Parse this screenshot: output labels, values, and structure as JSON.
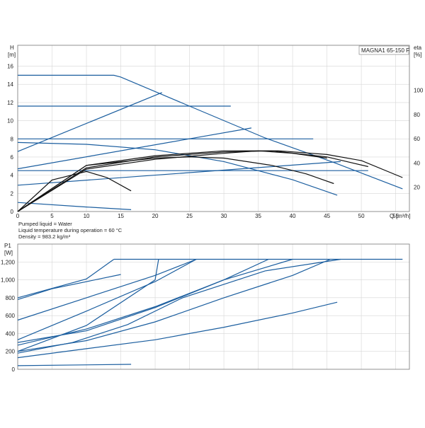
{
  "colors": {
    "curve": "#1b5e9f",
    "efficiency": "#111111",
    "grid": "#d6d6d6",
    "frame": "#777777"
  },
  "notes": [
    "Pumped liquid = Water",
    "Liquid temperature during operation = 60 °C",
    "Density = 983.2 kg/m³"
  ],
  "chart_data": [
    {
      "type": "line",
      "title": "MAGNA1 65-150 F",
      "ylabel": "H",
      "yunit": "[m]",
      "y2label": "eta",
      "y2unit": "[%]",
      "xlabel": "Q",
      "xunit": "[m³/h]",
      "xlim": [
        0,
        57
      ],
      "ylim": [
        0,
        18.3
      ],
      "y2lim": [
        0,
        137
      ],
      "grid": true,
      "x_ticks": [
        "0",
        "5",
        "10",
        "15",
        "20",
        "25",
        "30",
        "35",
        "40",
        "45",
        "50",
        "55"
      ],
      "y_ticks": [
        "0",
        "2",
        "4",
        "6",
        "8",
        "10",
        "12",
        "14",
        "16"
      ],
      "y2_ticks": [
        "20",
        "40",
        "60",
        "80",
        "100"
      ],
      "head_curves": [
        [
          [
            0,
            15
          ],
          [
            14,
            15
          ],
          [
            15,
            14.8
          ],
          [
            25,
            11.6
          ],
          [
            36,
            8.1
          ],
          [
            46,
            5.4
          ],
          [
            56,
            2.5
          ]
        ],
        [
          [
            0,
            6.6
          ],
          [
            21,
            13.1
          ]
        ],
        [
          [
            0,
            4.7
          ],
          [
            34,
            9.2
          ]
        ],
        [
          [
            0,
            2.9
          ],
          [
            47,
            5.5
          ]
        ],
        [
          [
            0,
            1.0
          ],
          [
            10,
            0.5
          ],
          [
            16.5,
            0.2
          ]
        ],
        [
          [
            0,
            11.6
          ],
          [
            31,
            11.6
          ]
        ],
        [
          [
            0,
            8.0
          ],
          [
            43,
            8.0
          ]
        ],
        [
          [
            0,
            4.5
          ],
          [
            51,
            4.5
          ]
        ],
        [
          [
            0,
            7.6
          ],
          [
            10,
            7.4
          ],
          [
            20,
            6.8
          ],
          [
            30,
            5.5
          ],
          [
            40,
            3.5
          ],
          [
            46.5,
            1.8
          ]
        ]
      ],
      "efficiency_curves": [
        [
          [
            0,
            0
          ],
          [
            5,
            26
          ],
          [
            10,
            33
          ],
          [
            13,
            28
          ],
          [
            16.5,
            17
          ]
        ],
        [
          [
            0,
            0
          ],
          [
            10,
            38
          ],
          [
            20,
            44
          ],
          [
            25,
            45
          ],
          [
            30,
            44
          ],
          [
            37,
            38
          ],
          [
            42,
            31
          ],
          [
            46,
            23
          ]
        ],
        [
          [
            0,
            0
          ],
          [
            10,
            35
          ],
          [
            20,
            43
          ],
          [
            30,
            48
          ],
          [
            35,
            50
          ],
          [
            40,
            48
          ],
          [
            45,
            44
          ]
        ],
        [
          [
            0,
            0
          ],
          [
            10,
            36
          ],
          [
            20,
            45
          ],
          [
            30,
            49
          ],
          [
            37,
            50
          ],
          [
            45,
            45
          ],
          [
            51,
            37
          ]
        ],
        [
          [
            0,
            0
          ],
          [
            10,
            38
          ],
          [
            20,
            46
          ],
          [
            30,
            50
          ],
          [
            38,
            50
          ],
          [
            45,
            47
          ],
          [
            50,
            42
          ],
          [
            56,
            28
          ]
        ]
      ]
    },
    {
      "type": "line",
      "ylabel": "P1",
      "yunit": "[W]",
      "xlim": [
        0,
        57
      ],
      "ylim": [
        0,
        1400
      ],
      "grid": true,
      "y_ticks": [
        "0",
        "200",
        "400",
        "600",
        "800",
        "1,000",
        "1,200"
      ],
      "power_curves": [
        [
          [
            0,
            40
          ],
          [
            16.5,
            55
          ]
        ],
        [
          [
            0,
            130
          ],
          [
            10,
            230
          ],
          [
            20,
            330
          ],
          [
            30,
            470
          ],
          [
            40,
            630
          ],
          [
            46.5,
            750
          ]
        ],
        [
          [
            0,
            200
          ],
          [
            10,
            320
          ],
          [
            20,
            530
          ],
          [
            30,
            800
          ],
          [
            40,
            1050
          ],
          [
            45.5,
            1230
          ]
        ],
        [
          [
            0,
            270
          ],
          [
            10,
            450
          ],
          [
            20,
            700
          ],
          [
            30,
            1000
          ],
          [
            40,
            1230
          ]
        ],
        [
          [
            0,
            300
          ],
          [
            10,
            430
          ],
          [
            20,
            690
          ],
          [
            30,
            1000
          ],
          [
            36.5,
            1230
          ]
        ],
        [
          [
            0,
            330
          ],
          [
            10,
            650
          ],
          [
            20,
            980
          ],
          [
            26,
            1230
          ]
        ],
        [
          [
            0,
            200
          ],
          [
            10,
            490
          ],
          [
            20,
            1000
          ],
          [
            20.5,
            1230
          ]
        ],
        [
          [
            0,
            550
          ],
          [
            10,
            800
          ],
          [
            20,
            1050
          ],
          [
            26,
            1230
          ]
        ],
        [
          [
            0,
            800
          ],
          [
            10,
            1010
          ],
          [
            14,
            1230
          ]
        ],
        [
          [
            14,
            1230
          ],
          [
            56,
            1230
          ]
        ],
        [
          [
            0,
            780
          ],
          [
            5,
            900
          ],
          [
            15,
            1060
          ]
        ],
        [
          [
            0,
            180
          ],
          [
            8,
            300
          ],
          [
            16,
            500
          ],
          [
            24,
            800
          ],
          [
            36,
            1100
          ],
          [
            47,
            1230
          ]
        ]
      ]
    }
  ]
}
